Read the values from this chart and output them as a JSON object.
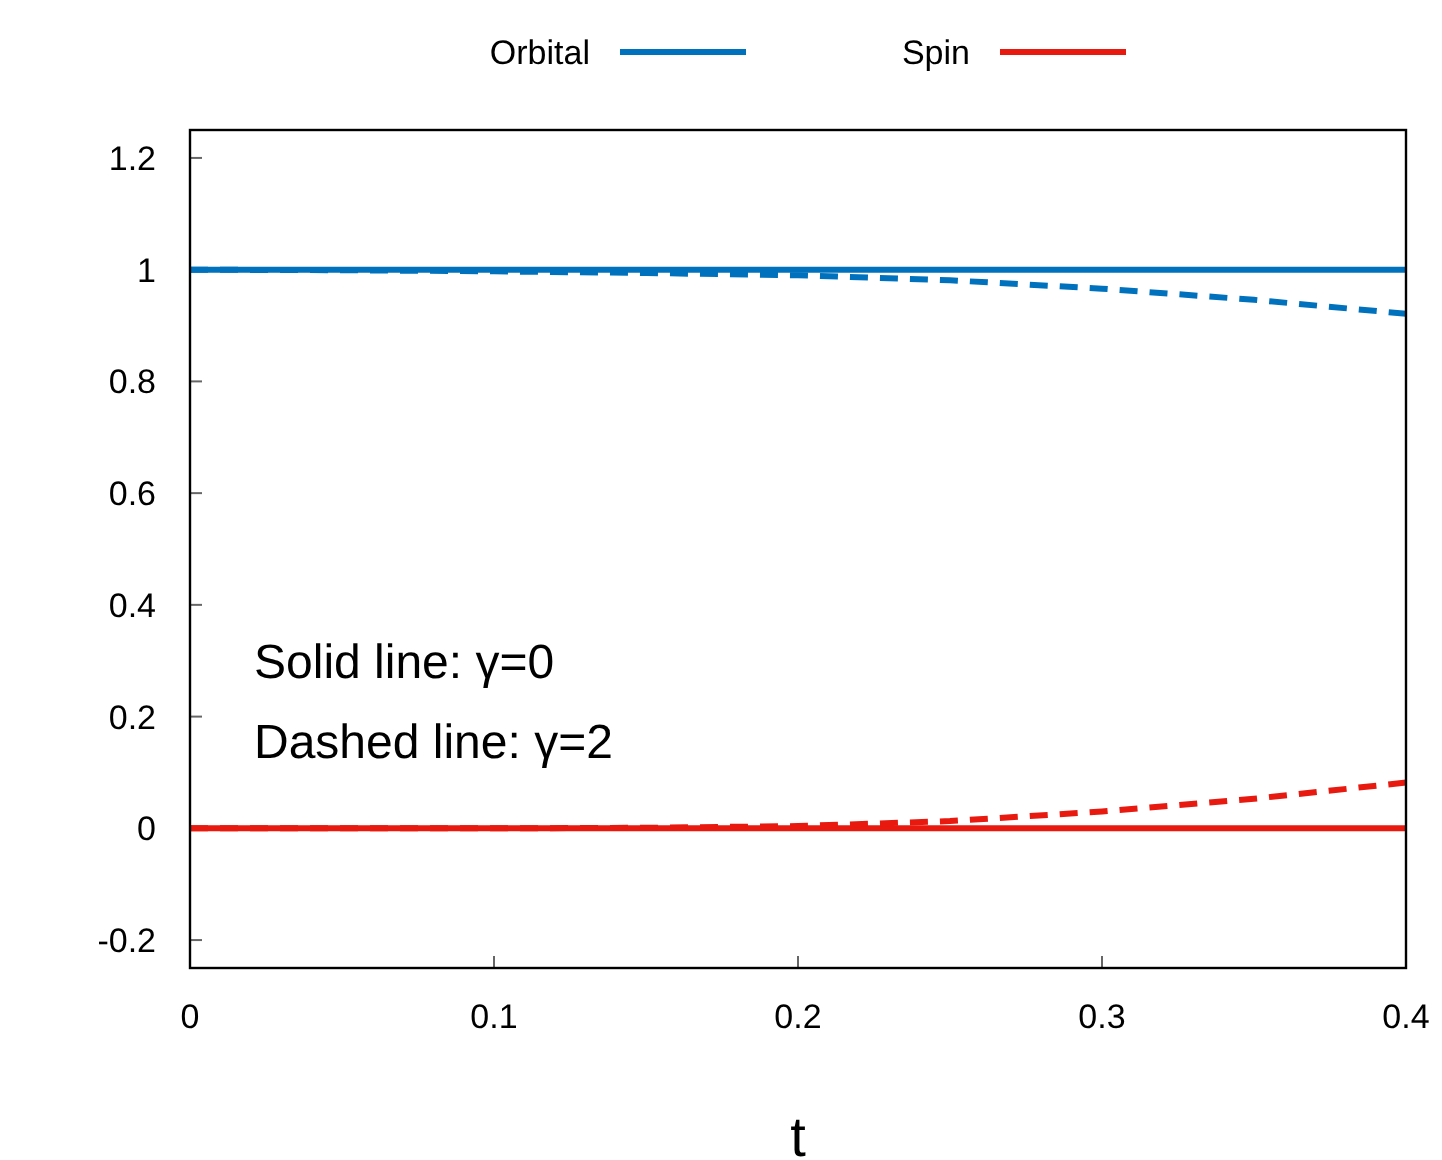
{
  "chart_data": {
    "type": "line",
    "xlabel": "t",
    "x": [
      0,
      0.05,
      0.1,
      0.15,
      0.2,
      0.25,
      0.3,
      0.35,
      0.4
    ],
    "series": [
      {
        "name": "Orbital",
        "color": "#0072bd",
        "line_style": "solid",
        "values": [
          1,
          1,
          1,
          1,
          1,
          1,
          1,
          1,
          1
        ]
      },
      {
        "color": "#0072bd",
        "line_style": "dashed",
        "values": [
          1,
          0.999,
          0.997,
          0.994,
          0.99,
          0.981,
          0.966,
          0.946,
          0.921
        ]
      },
      {
        "name": "Spin",
        "color": "#e8190f",
        "line_style": "solid",
        "values": [
          0,
          0,
          0,
          0,
          0,
          0,
          0,
          0,
          0
        ]
      },
      {
        "color": "#e8190f",
        "line_style": "dashed",
        "values": [
          0,
          0,
          0,
          0.001,
          0.004,
          0.013,
          0.03,
          0.053,
          0.082
        ]
      }
    ],
    "xlim": [
      0,
      0.4
    ],
    "xticks": [
      0,
      0.1,
      0.2,
      0.3,
      0.4
    ],
    "ylim": [
      -0.25,
      1.25
    ],
    "yticks": [
      -0.2,
      0,
      0.2,
      0.4,
      0.6,
      0.8,
      1,
      1.2
    ],
    "grid": false,
    "legend": "top",
    "marker": "none",
    "annotations": [
      "Solid line: γ=0",
      "Dashed line: γ=2"
    ]
  }
}
